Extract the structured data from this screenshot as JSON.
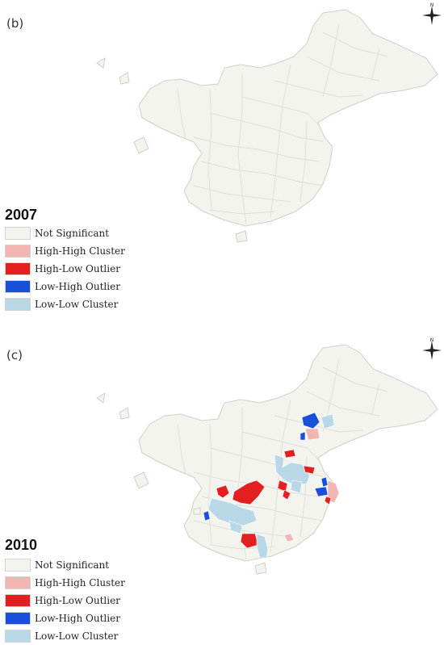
{
  "legend_categories": [
    {
      "id": "ns",
      "label": "Not Significant",
      "color": "#f4f4ef"
    },
    {
      "id": "hh",
      "label": "High-High Cluster",
      "color": "#f2b6b2"
    },
    {
      "id": "hl",
      "label": "High-Low Outlier",
      "color": "#e3201f"
    },
    {
      "id": "lh",
      "label": "Low-High Outlier",
      "color": "#1a4fdb"
    },
    {
      "id": "ll",
      "label": "Low-Low Cluster",
      "color": "#b8d8e8"
    }
  ],
  "border_color": "#cfcfc8",
  "panels": [
    {
      "label": "(b)",
      "year": "2007",
      "compass_letter": "N",
      "legend": [
        "Not Significant",
        "High-High Cluster",
        "High-Low Outlier",
        "Low-High Outlier",
        "Low-Low Cluster"
      ]
    },
    {
      "label": "(c)",
      "year": "2010",
      "compass_letter": "N",
      "legend": [
        "Not Significant",
        "High-High Cluster",
        "High-Low Outlier",
        "Low-High Outlier",
        "Low-Low Cluster"
      ]
    }
  ]
}
